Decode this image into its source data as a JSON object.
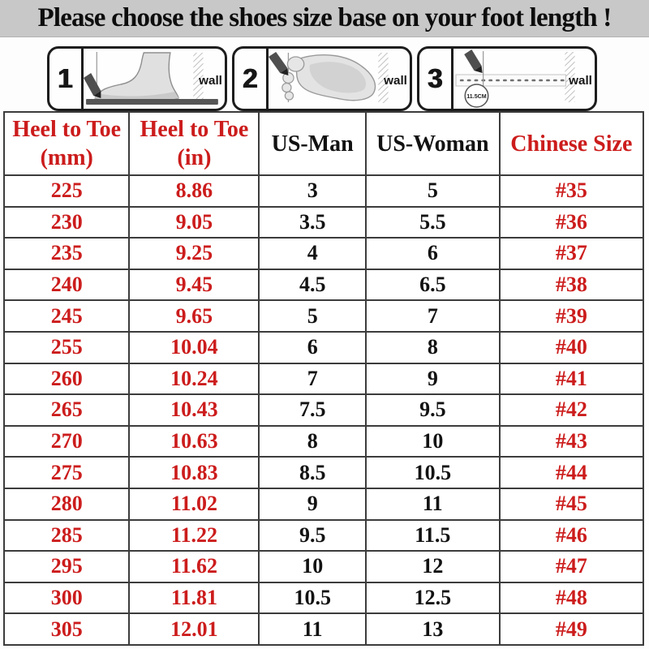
{
  "title": "Please choose the shoes size base on your foot length !",
  "instructions": {
    "steps": [
      {
        "number": "1",
        "wall_label": "wall"
      },
      {
        "number": "2",
        "wall_label": "wall"
      },
      {
        "number": "3",
        "wall_label": "wall",
        "measure_label": "11.5CM"
      }
    ]
  },
  "table": {
    "headers": [
      {
        "line1": "Heel to Toe",
        "line2": "(mm)"
      },
      {
        "line1": "Heel to Toe",
        "line2": "(in)"
      },
      {
        "line1": "US-Man",
        "line2": ""
      },
      {
        "line1": "US-Woman",
        "line2": ""
      },
      {
        "line1": "Chinese Size",
        "line2": ""
      }
    ],
    "column_colors": [
      "red",
      "red",
      "black",
      "black",
      "red"
    ],
    "rows": [
      [
        "225",
        "8.86",
        "3",
        "5",
        "#35"
      ],
      [
        "230",
        "9.05",
        "3.5",
        "5.5",
        "#36"
      ],
      [
        "235",
        "9.25",
        "4",
        "6",
        "#37"
      ],
      [
        "240",
        "9.45",
        "4.5",
        "6.5",
        "#38"
      ],
      [
        "245",
        "9.65",
        "5",
        "7",
        "#39"
      ],
      [
        "255",
        "10.04",
        "6",
        "8",
        "#40"
      ],
      [
        "260",
        "10.24",
        "7",
        "9",
        "#41"
      ],
      [
        "265",
        "10.43",
        "7.5",
        "9.5",
        "#42"
      ],
      [
        "270",
        "10.63",
        "8",
        "10",
        "#43"
      ],
      [
        "275",
        "10.83",
        "8.5",
        "10.5",
        "#44"
      ],
      [
        "280",
        "11.02",
        "9",
        "11",
        "#45"
      ],
      [
        "285",
        "11.22",
        "9.5",
        "11.5",
        "#46"
      ],
      [
        "295",
        "11.62",
        "10",
        "12",
        "#47"
      ],
      [
        "300",
        "11.81",
        "10.5",
        "12.5",
        "#48"
      ],
      [
        "305",
        "12.01",
        "11",
        "13",
        "#49"
      ]
    ]
  },
  "colors": {
    "accent_red": "#cc1c1c",
    "text_black": "#121212",
    "title_background": "#c8c8c8",
    "table_border": "#3c3c3c"
  }
}
